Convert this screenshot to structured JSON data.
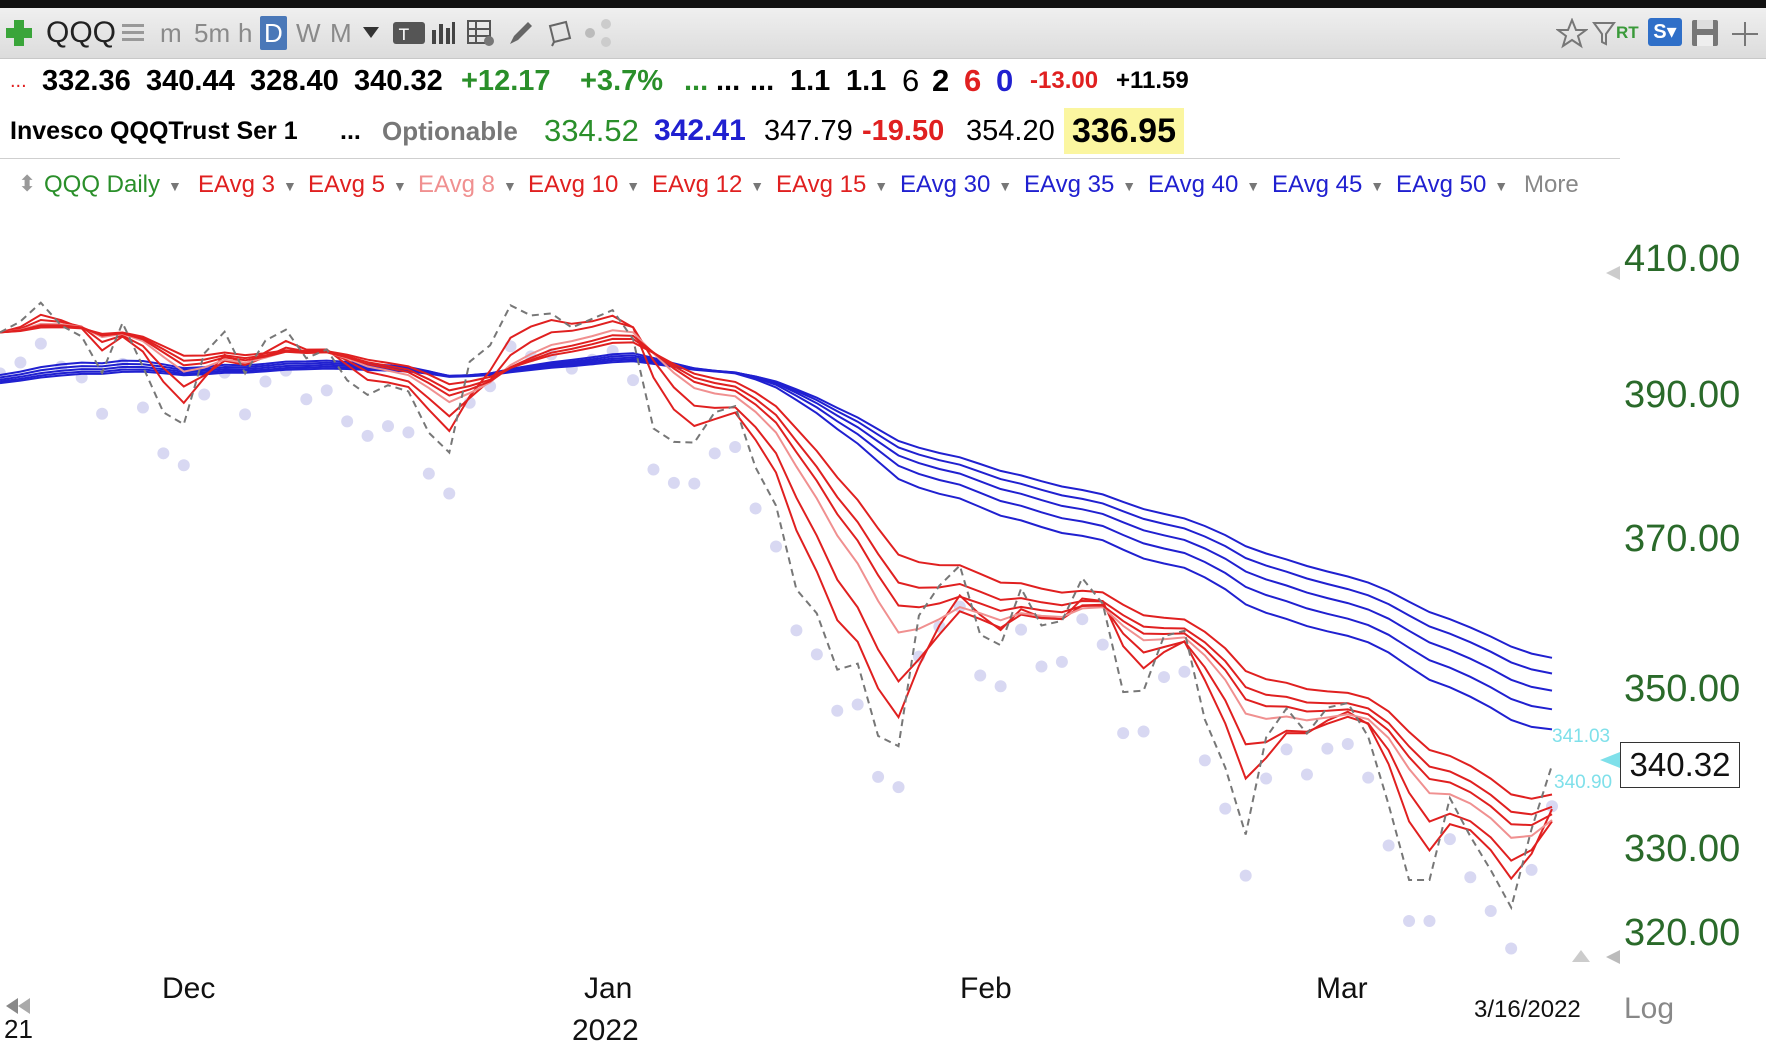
{
  "toolbar": {
    "symbol": "QQQ",
    "intervals": [
      "m",
      "5m",
      "h",
      "D",
      "W",
      "M"
    ],
    "right_icons": [
      "star-icon",
      "filter-icon",
      "rt-icon",
      "s-menu-icon",
      "save-icon",
      "crosshair-icon"
    ],
    "rt_label": "RT",
    "s_label": "S"
  },
  "quote_row1": {
    "open": "332.36",
    "high": "340.44",
    "low": "328.40",
    "close": "340.32",
    "change": "+12.17",
    "change_pct": "+3.7%",
    "ellipsis1": "...",
    "ellipsis2": "...",
    "ellipsis3": "...",
    "v1": "1.1",
    "v2": "1.1",
    "n1": "6",
    "n2": "2",
    "n3": "6",
    "n4": "0",
    "neg": "-13.00",
    "pos": "+11.59"
  },
  "quote_row2": {
    "name": "Invesco QQQTrust Ser 1",
    "ellipsis": "...",
    "optionable": "Optionable",
    "p1": "334.52",
    "p2": "342.41",
    "p3": "347.79",
    "p4": "-19.50",
    "p5": "354.20",
    "p6": "336.95"
  },
  "colors": {
    "green": "#2a8f2a",
    "red": "#e02020",
    "pink": "#f09090",
    "blue": "#2020d0",
    "gray": "#777777",
    "highlight": "#fbf6a0"
  },
  "chart_data": {
    "type": "line",
    "title": "QQQ Daily",
    "legend": [
      "EAvg 3",
      "EAvg 5",
      "EAvg 8",
      "EAvg 10",
      "EAvg 12",
      "EAvg 15",
      "EAvg 30",
      "EAvg 35",
      "EAvg 40",
      "EAvg 45",
      "EAvg 50",
      "More"
    ],
    "y_ticks": [
      "410.00",
      "390.00",
      "370.00",
      "350.00",
      "330.00",
      "320.00"
    ],
    "x_ticks": [
      "Dec",
      "Jan",
      "Feb",
      "Mar"
    ],
    "year_label": "2022",
    "left_edge_label": "21",
    "date_label": "3/16/2022",
    "scale_label": "Log",
    "last_price": "340.32",
    "cyan_labels": [
      "341.03",
      "340.90"
    ],
    "ylim": [
      316,
      414
    ],
    "log_scale": true,
    "series": {
      "close": [
        399.2,
        400.8,
        403.6,
        400.2,
        398.6,
        393.3,
        400.6,
        394.2,
        387.6,
        385.9,
        396.1,
        399.3,
        393.2,
        398.0,
        399.6,
        395.4,
        396.7,
        392.2,
        390.1,
        391.5,
        390.6,
        384.7,
        381.9,
        394.9,
        397.3,
        403.2,
        401.7,
        402.0,
        399.9,
        401.2,
        402.5,
        398.2,
        385.3,
        383.4,
        383.3,
        387.6,
        388.5,
        379.8,
        374.5,
        363.1,
        359.9,
        352.5,
        353.3,
        344.0,
        342.7,
        359.6,
        363.6,
        366.3,
        357.1,
        355.7,
        363.2,
        358.3,
        358.9,
        364.6,
        361.2,
        349.6,
        349.8,
        356.9,
        357.6,
        346.1,
        340.0,
        331.7,
        343.8,
        347.5,
        344.3,
        347.6,
        348.2,
        343.9,
        335.4,
        326.2,
        326.2,
        336.2,
        331.5,
        327.4,
        322.9,
        332.4,
        340.3
      ],
      "ema_fast": [
        [
          396,
          398,
          400,
          401,
          400,
          398,
          398,
          397,
          395,
          393,
          394,
          396,
          395,
          396,
          397,
          396,
          396,
          395,
          394,
          393,
          393,
          391,
          389,
          391,
          393,
          396,
          398,
          399,
          399,
          400,
          401,
          400,
          396,
          392,
          389,
          388,
          388,
          386,
          382,
          376,
          370,
          364,
          360,
          355,
          350,
          353,
          357,
          360,
          359,
          358,
          360,
          359,
          359,
          361,
          361,
          357,
          355,
          356,
          356,
          353,
          349,
          344,
          344,
          345,
          345,
          346,
          346,
          345,
          342,
          337,
          333,
          334,
          333,
          331,
          328,
          330,
          333
        ]
      ]
    }
  }
}
